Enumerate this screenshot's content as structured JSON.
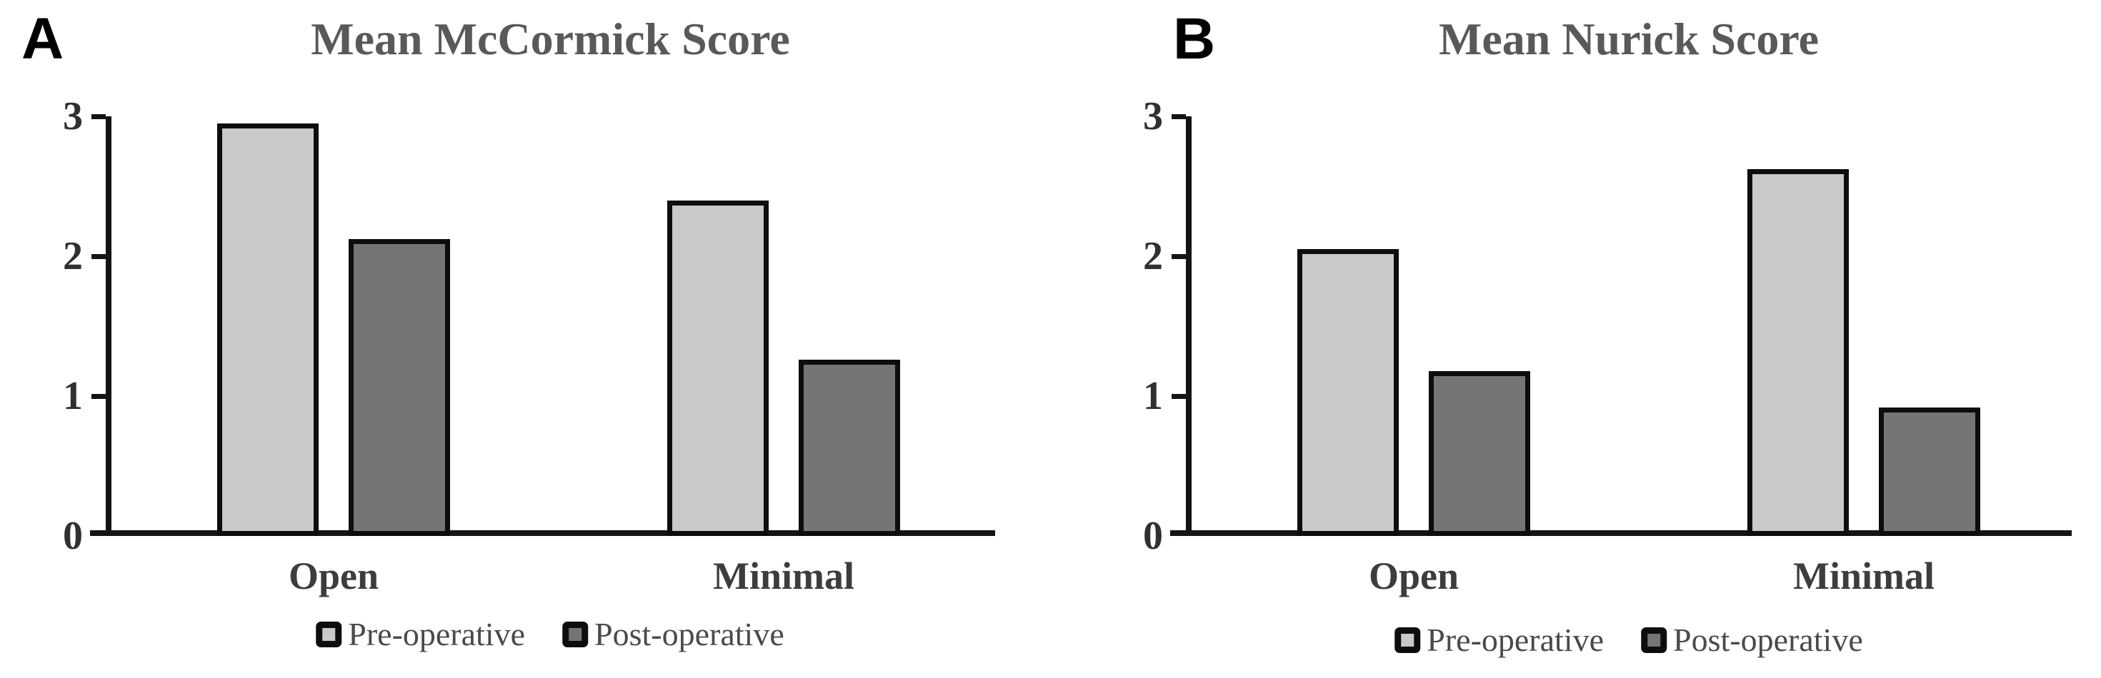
{
  "page": {
    "background": "#ffffff"
  },
  "chart_data": [
    {
      "type": "bar",
      "panel_label": "A",
      "title": "Mean McCormick Score",
      "categories": [
        "Open",
        "Minimal"
      ],
      "series": [
        {
          "name": "Pre-operative",
          "values": [
            2.95,
            2.4
          ]
        },
        {
          "name": "Post-operative",
          "values": [
            2.12,
            1.26
          ]
        }
      ],
      "xlabel": "",
      "ylabel": "",
      "ylim": [
        0,
        3
      ],
      "yticks": [
        3,
        2,
        1,
        0
      ],
      "grid": false,
      "legend_position": "bottom"
    },
    {
      "type": "bar",
      "panel_label": "B",
      "title": "Mean Nurick Score",
      "categories": [
        "Open",
        "Minimal"
      ],
      "series": [
        {
          "name": "Pre-operative",
          "values": [
            2.05,
            2.62
          ]
        },
        {
          "name": "Post-operative",
          "values": [
            1.18,
            0.92
          ]
        }
      ],
      "xlabel": "",
      "ylabel": "",
      "ylim": [
        0,
        3
      ],
      "yticks": [
        3,
        2,
        1,
        0
      ],
      "grid": false,
      "legend_position": "bottom"
    }
  ],
  "colors": {
    "pre_operative_fill": "#c9c9c9",
    "post_operative_fill": "#757575",
    "bar_border": "#0d0d0d",
    "axis": "#141414",
    "title_text": "#595959",
    "tick_label_text": "#303030",
    "category_label_text": "#3d3d3d",
    "legend_text": "#4a4a4a",
    "panel_label_text": "#000000"
  }
}
